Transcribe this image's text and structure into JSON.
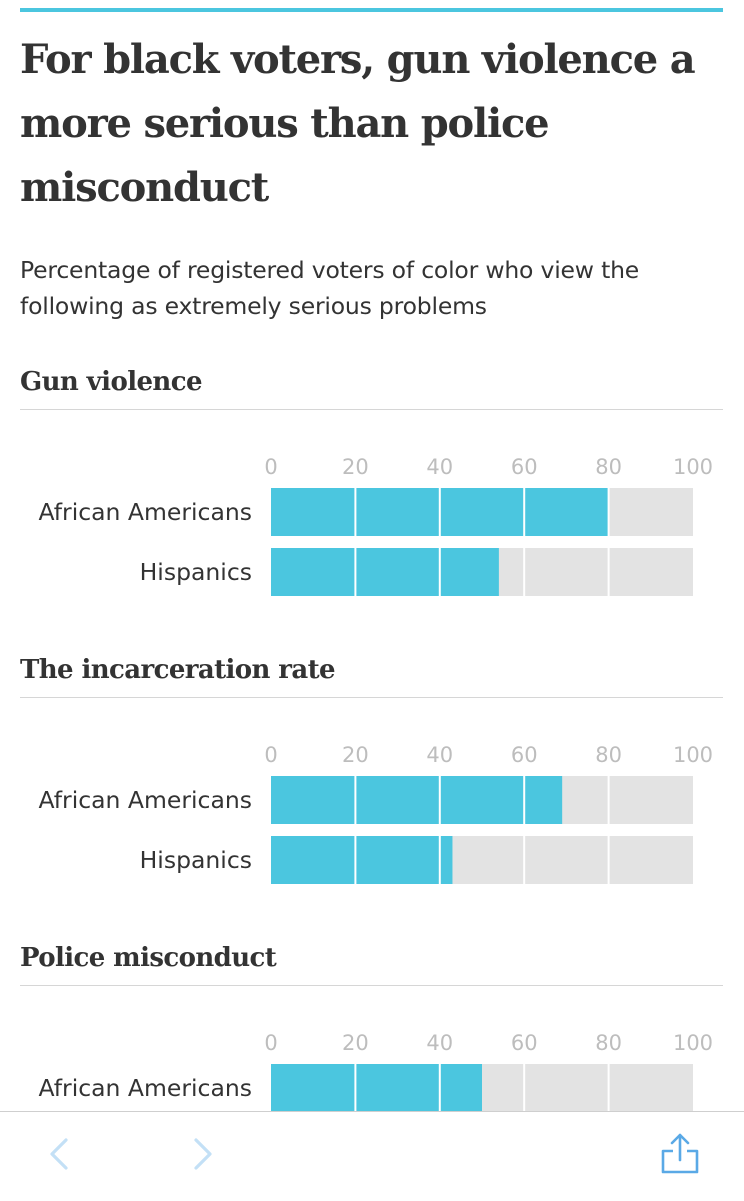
{
  "title": "For black voters, gun violence a more serious than police misconduct",
  "subtitle": "Percentage of registered voters of color who view the following as extremely serious problems",
  "colors": {
    "accent": "#4bc6df",
    "track": "#e3e3e3",
    "tick": "#bdbdbd",
    "text": "#333333",
    "ios_blue": "#5aa9e6"
  },
  "toolbar": {
    "back_icon": "chevron-left-icon",
    "forward_icon": "chevron-right-icon",
    "share_icon": "share-icon"
  },
  "chart_data": [
    {
      "type": "bar",
      "orientation": "horizontal",
      "title": "Gun violence",
      "categories": [
        "African Americans",
        "Hispanics"
      ],
      "values": [
        80,
        54
      ],
      "xlim": [
        0,
        100
      ],
      "ticks": [
        0,
        20,
        40,
        60,
        80,
        100
      ],
      "grid": true
    },
    {
      "type": "bar",
      "orientation": "horizontal",
      "title": "The incarceration rate",
      "categories": [
        "African Americans",
        "Hispanics"
      ],
      "values": [
        69,
        43
      ],
      "xlim": [
        0,
        100
      ],
      "ticks": [
        0,
        20,
        40,
        60,
        80,
        100
      ],
      "grid": true
    },
    {
      "type": "bar",
      "orientation": "horizontal",
      "title": "Police misconduct",
      "categories": [
        "African Americans"
      ],
      "values": [
        50
      ],
      "xlim": [
        0,
        100
      ],
      "ticks": [
        0,
        20,
        40,
        60,
        80,
        100
      ],
      "grid": true
    }
  ]
}
